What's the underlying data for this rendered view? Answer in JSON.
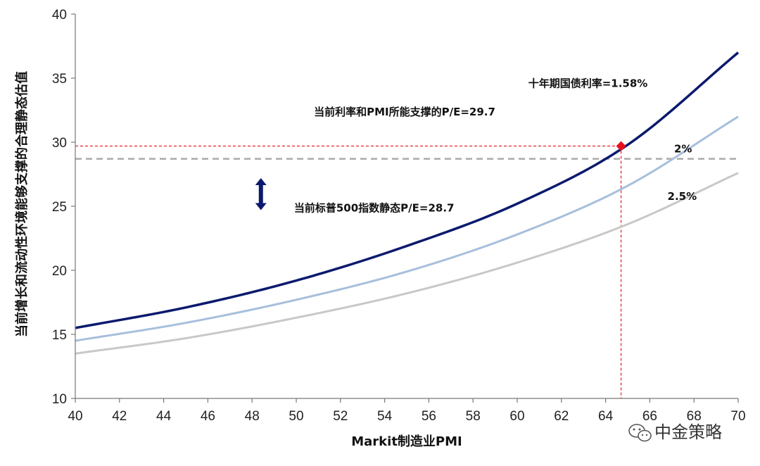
{
  "chart_data": {
    "type": "line",
    "xlabel": "Markit制造业PMI",
    "ylabel": "当前增长和流动性环境能够支撑的合理静态估值",
    "xlim": [
      40,
      70
    ],
    "ylim": [
      10,
      40
    ],
    "x_ticks": [
      40,
      42,
      44,
      46,
      48,
      50,
      52,
      54,
      56,
      58,
      60,
      62,
      64,
      66,
      68,
      70
    ],
    "y_ticks": [
      10,
      15,
      20,
      25,
      30,
      35,
      40
    ],
    "grid": false,
    "series": [
      {
        "name": "十年期国债利率=1.58%",
        "color": "#0b1a6e",
        "width": 3.5,
        "x": [
          40,
          45,
          50,
          55,
          60,
          65,
          70
        ],
        "y": [
          15.5,
          17.1,
          19.2,
          21.9,
          25.2,
          29.8,
          37.0
        ]
      },
      {
        "name": "2%",
        "color": "#a7bfdc",
        "width": 3,
        "x": [
          40,
          45,
          50,
          55,
          60,
          65,
          70
        ],
        "y": [
          14.5,
          15.9,
          17.7,
          19.9,
          22.8,
          26.6,
          32.0
        ]
      },
      {
        "name": "2.5%",
        "color": "#c8c8c8",
        "width": 3,
        "x": [
          40,
          45,
          50,
          55,
          60,
          65,
          70
        ],
        "y": [
          13.5,
          14.7,
          16.3,
          18.2,
          20.6,
          23.6,
          27.6
        ]
      }
    ],
    "reference_lines": [
      {
        "orientation": "horizontal",
        "y": 28.7,
        "color": "#aaaaaa",
        "style": "dashed"
      },
      {
        "orientation": "horizontal",
        "y": 29.7,
        "x_end": 64.7,
        "color": "#e8404a",
        "style": "dotted"
      },
      {
        "orientation": "vertical",
        "x": 64.7,
        "y_end": 29.7,
        "color": "#e8404a",
        "style": "dotted"
      }
    ],
    "marker": {
      "x": 64.7,
      "y": 29.7,
      "color": "#e8101a",
      "shape": "diamond"
    },
    "annotations": [
      {
        "text": "十年期国债利率=1.58%",
        "x": 60.5,
        "y": 34.3
      },
      {
        "text": "当前利率和PMI所能支撑的P/E=29.7",
        "x": 50.8,
        "y": 32.1
      },
      {
        "text": "2%",
        "x": 67.1,
        "y": 29.2
      },
      {
        "text": "2.5%",
        "x": 66.8,
        "y": 25.5
      },
      {
        "text": "当前标普500指数静态P/E=28.7",
        "x": 49.9,
        "y": 24.6
      }
    ],
    "arrow": {
      "type": "double-vertical",
      "x": 48.4,
      "y_top": 27.2,
      "y_bottom": 24.7,
      "color": "#0b1a6e"
    }
  },
  "watermark": "中金策略"
}
